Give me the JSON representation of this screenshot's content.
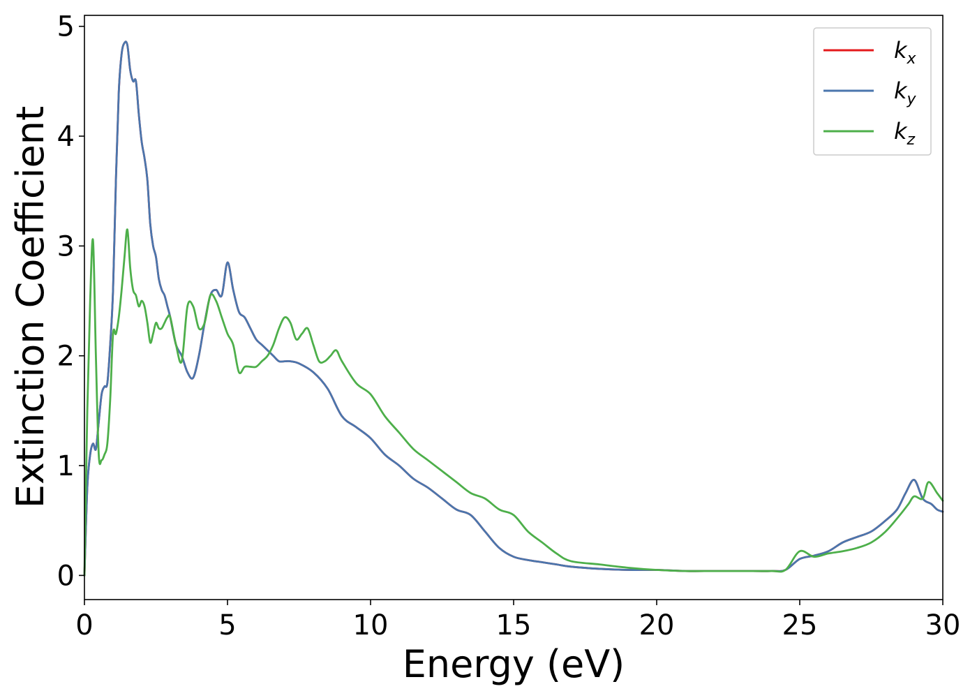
{
  "chart_data": {
    "type": "line",
    "xlabel": "Energy (eV)",
    "ylabel": "Extinction Coefficient",
    "xlim": [
      0,
      30
    ],
    "ylim": [
      -0.22,
      5.1
    ],
    "xticks": [
      0,
      5,
      10,
      15,
      20,
      25,
      30
    ],
    "yticks": [
      0,
      1,
      2,
      3,
      4,
      5
    ],
    "grid": false,
    "legend_position": "top-right",
    "series": [
      {
        "name": "k_x",
        "label_main": "k",
        "label_sub": "x",
        "color": "#e41a1c",
        "x": [
          0,
          0.1,
          0.2,
          0.3,
          0.4,
          0.5,
          0.6,
          0.7,
          0.8,
          0.9,
          1.0,
          1.1,
          1.2,
          1.3,
          1.4,
          1.5,
          1.6,
          1.7,
          1.8,
          1.9,
          2.0,
          2.1,
          2.2,
          2.3,
          2.4,
          2.5,
          2.6,
          2.7,
          2.8,
          2.9,
          3.0,
          3.2,
          3.4,
          3.6,
          3.8,
          4.0,
          4.2,
          4.4,
          4.6,
          4.8,
          5.0,
          5.2,
          5.4,
          5.6,
          5.8,
          6.0,
          6.2,
          6.4,
          6.6,
          6.8,
          7.0,
          7.2,
          7.5,
          8.0,
          8.5,
          9.0,
          9.5,
          10.0,
          10.5,
          11.0,
          11.5,
          12.0,
          12.5,
          13.0,
          13.5,
          14.0,
          14.5,
          15.0,
          15.5,
          16.0,
          16.5,
          17.0,
          18.0,
          19.0,
          20.0,
          21.0,
          22.0,
          23.0,
          24.0,
          24.5,
          25.0,
          25.5,
          26.0,
          26.5,
          27.0,
          27.5,
          28.0,
          28.4,
          28.7,
          29.0,
          29.3,
          29.6,
          29.8,
          30.0
        ],
        "y": [
          0.0,
          0.8,
          1.1,
          1.2,
          1.15,
          1.4,
          1.65,
          1.72,
          1.75,
          2.1,
          2.6,
          3.6,
          4.4,
          4.75,
          4.85,
          4.83,
          4.6,
          4.5,
          4.5,
          4.2,
          3.95,
          3.8,
          3.6,
          3.2,
          3.0,
          2.9,
          2.7,
          2.6,
          2.55,
          2.45,
          2.35,
          2.1,
          2.0,
          1.85,
          1.8,
          2.0,
          2.3,
          2.55,
          2.6,
          2.55,
          2.85,
          2.6,
          2.4,
          2.35,
          2.25,
          2.15,
          2.1,
          2.05,
          2.0,
          1.95,
          1.95,
          1.95,
          1.93,
          1.85,
          1.7,
          1.45,
          1.35,
          1.25,
          1.1,
          1.0,
          0.88,
          0.8,
          0.7,
          0.6,
          0.55,
          0.4,
          0.25,
          0.17,
          0.14,
          0.12,
          0.1,
          0.08,
          0.06,
          0.05,
          0.05,
          0.04,
          0.04,
          0.04,
          0.04,
          0.05,
          0.15,
          0.18,
          0.22,
          0.3,
          0.35,
          0.4,
          0.5,
          0.6,
          0.75,
          0.87,
          0.7,
          0.65,
          0.6,
          0.58
        ]
      },
      {
        "name": "k_y",
        "label_main": "k",
        "label_sub": "y",
        "color": "#4a76ad",
        "x": [
          0,
          0.1,
          0.2,
          0.3,
          0.4,
          0.5,
          0.6,
          0.7,
          0.8,
          0.9,
          1.0,
          1.1,
          1.2,
          1.3,
          1.4,
          1.5,
          1.6,
          1.7,
          1.8,
          1.9,
          2.0,
          2.1,
          2.2,
          2.3,
          2.4,
          2.5,
          2.6,
          2.7,
          2.8,
          2.9,
          3.0,
          3.2,
          3.4,
          3.6,
          3.8,
          4.0,
          4.2,
          4.4,
          4.6,
          4.8,
          5.0,
          5.2,
          5.4,
          5.6,
          5.8,
          6.0,
          6.2,
          6.4,
          6.6,
          6.8,
          7.0,
          7.2,
          7.5,
          8.0,
          8.5,
          9.0,
          9.5,
          10.0,
          10.5,
          11.0,
          11.5,
          12.0,
          12.5,
          13.0,
          13.5,
          14.0,
          14.5,
          15.0,
          15.5,
          16.0,
          16.5,
          17.0,
          18.0,
          19.0,
          20.0,
          21.0,
          22.0,
          23.0,
          24.0,
          24.5,
          25.0,
          25.5,
          26.0,
          26.5,
          27.0,
          27.5,
          28.0,
          28.4,
          28.7,
          29.0,
          29.3,
          29.6,
          29.8,
          30.0
        ],
        "y": [
          0.0,
          0.8,
          1.1,
          1.2,
          1.15,
          1.4,
          1.65,
          1.72,
          1.75,
          2.1,
          2.6,
          3.6,
          4.4,
          4.75,
          4.85,
          4.83,
          4.6,
          4.5,
          4.5,
          4.2,
          3.95,
          3.8,
          3.6,
          3.2,
          3.0,
          2.9,
          2.7,
          2.6,
          2.55,
          2.45,
          2.35,
          2.1,
          2.0,
          1.85,
          1.8,
          2.0,
          2.3,
          2.55,
          2.6,
          2.55,
          2.85,
          2.6,
          2.4,
          2.35,
          2.25,
          2.15,
          2.1,
          2.05,
          2.0,
          1.95,
          1.95,
          1.95,
          1.93,
          1.85,
          1.7,
          1.45,
          1.35,
          1.25,
          1.1,
          1.0,
          0.88,
          0.8,
          0.7,
          0.6,
          0.55,
          0.4,
          0.25,
          0.17,
          0.14,
          0.12,
          0.1,
          0.08,
          0.06,
          0.05,
          0.05,
          0.04,
          0.04,
          0.04,
          0.04,
          0.05,
          0.15,
          0.18,
          0.22,
          0.3,
          0.35,
          0.4,
          0.5,
          0.6,
          0.75,
          0.87,
          0.7,
          0.65,
          0.6,
          0.58
        ]
      },
      {
        "name": "k_z",
        "label_main": "k",
        "label_sub": "z",
        "color": "#4daf4a",
        "x": [
          0,
          0.1,
          0.2,
          0.3,
          0.4,
          0.5,
          0.6,
          0.7,
          0.8,
          0.9,
          1.0,
          1.1,
          1.2,
          1.3,
          1.4,
          1.5,
          1.6,
          1.7,
          1.8,
          1.9,
          2.0,
          2.1,
          2.2,
          2.3,
          2.4,
          2.5,
          2.6,
          2.7,
          2.8,
          2.9,
          3.0,
          3.2,
          3.4,
          3.6,
          3.8,
          4.0,
          4.2,
          4.4,
          4.6,
          4.8,
          5.0,
          5.2,
          5.4,
          5.6,
          5.8,
          6.0,
          6.2,
          6.4,
          6.6,
          6.8,
          7.0,
          7.2,
          7.4,
          7.6,
          7.8,
          8.0,
          8.2,
          8.4,
          8.6,
          8.8,
          9.0,
          9.5,
          10.0,
          10.5,
          11.0,
          11.5,
          12.0,
          12.5,
          13.0,
          13.5,
          14.0,
          14.5,
          15.0,
          15.5,
          16.0,
          16.5,
          17.0,
          18.0,
          19.0,
          20.0,
          21.0,
          22.0,
          23.0,
          24.0,
          24.5,
          25.0,
          25.5,
          26.0,
          26.5,
          27.0,
          27.5,
          28.0,
          28.5,
          28.8,
          29.0,
          29.3,
          29.5,
          29.8,
          30.0
        ],
        "y": [
          0.0,
          1.5,
          2.5,
          3.05,
          2.0,
          1.1,
          1.05,
          1.1,
          1.2,
          1.6,
          2.2,
          2.2,
          2.35,
          2.6,
          2.9,
          3.15,
          2.8,
          2.6,
          2.55,
          2.45,
          2.5,
          2.45,
          2.3,
          2.12,
          2.2,
          2.3,
          2.25,
          2.25,
          2.3,
          2.35,
          2.35,
          2.1,
          1.95,
          2.45,
          2.45,
          2.25,
          2.3,
          2.55,
          2.5,
          2.35,
          2.2,
          2.1,
          1.85,
          1.9,
          1.9,
          1.9,
          1.95,
          2.0,
          2.1,
          2.25,
          2.35,
          2.3,
          2.15,
          2.2,
          2.25,
          2.1,
          1.95,
          1.95,
          2.0,
          2.05,
          1.95,
          1.75,
          1.65,
          1.45,
          1.3,
          1.15,
          1.05,
          0.95,
          0.85,
          0.75,
          0.7,
          0.6,
          0.55,
          0.4,
          0.3,
          0.2,
          0.13,
          0.1,
          0.07,
          0.05,
          0.04,
          0.04,
          0.04,
          0.04,
          0.05,
          0.22,
          0.17,
          0.2,
          0.22,
          0.25,
          0.3,
          0.4,
          0.55,
          0.65,
          0.72,
          0.7,
          0.85,
          0.75,
          0.68
        ]
      }
    ]
  }
}
